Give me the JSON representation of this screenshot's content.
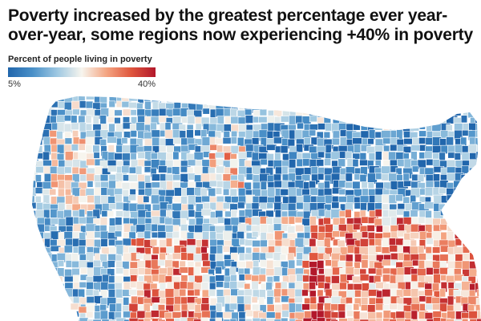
{
  "title": "Poverty increased by the greatest percentage ever year-over-year, some regions now experiencing +40% in poverty",
  "legend": {
    "label": "Percent of people living in poverty",
    "min_label": "5%",
    "max_label": "40%",
    "min_value": 5,
    "max_value": 40,
    "scale": [
      "#2166ac",
      "#4a90c8",
      "#9ec8e2",
      "#f7f5ee",
      "#f4a582",
      "#e0573e",
      "#b2182b"
    ]
  },
  "map": {
    "region": "Contiguous United States",
    "unit": "county",
    "colors": {
      "low": "#2a6db5",
      "mid": "#f4f0ea",
      "high": "#c0272d",
      "border": "#ffffff"
    }
  }
}
